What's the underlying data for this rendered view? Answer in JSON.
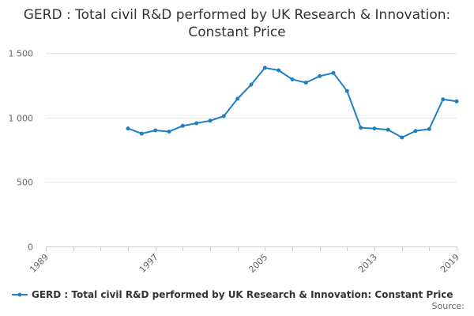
{
  "chart_data": {
    "type": "line",
    "title": "GERD : Total civil R&D performed by UK Research & Innovation: Constant Price",
    "xlabel": "",
    "ylabel": "",
    "xlim": [
      1989,
      2019
    ],
    "ylim": [
      0,
      1500
    ],
    "x_ticks": [
      1989,
      1997,
      2005,
      2013,
      2019
    ],
    "y_ticks": [
      0,
      500,
      1000,
      1500
    ],
    "y_tick_labels": [
      "0",
      "500",
      "1 000",
      "1 500"
    ],
    "grid": true,
    "legend_position": "bottom-left",
    "series": [
      {
        "name": "GERD : Total civil R&D performed by UK Research & Innovation: Constant Price",
        "color": "#1f7fbf",
        "x": [
          1995,
          1996,
          1997,
          1998,
          1999,
          2000,
          2001,
          2002,
          2003,
          2004,
          2005,
          2006,
          2007,
          2008,
          2009,
          2010,
          2011,
          2012,
          2013,
          2014,
          2015,
          2016,
          2017,
          2018,
          2019
        ],
        "y": [
          915,
          875,
          900,
          890,
          935,
          955,
          975,
          1010,
          1145,
          1255,
          1385,
          1365,
          1295,
          1270,
          1320,
          1345,
          1205,
          920,
          915,
          905,
          845,
          895,
          910,
          1140,
          1125
        ]
      }
    ]
  },
  "source_label": "Source:"
}
